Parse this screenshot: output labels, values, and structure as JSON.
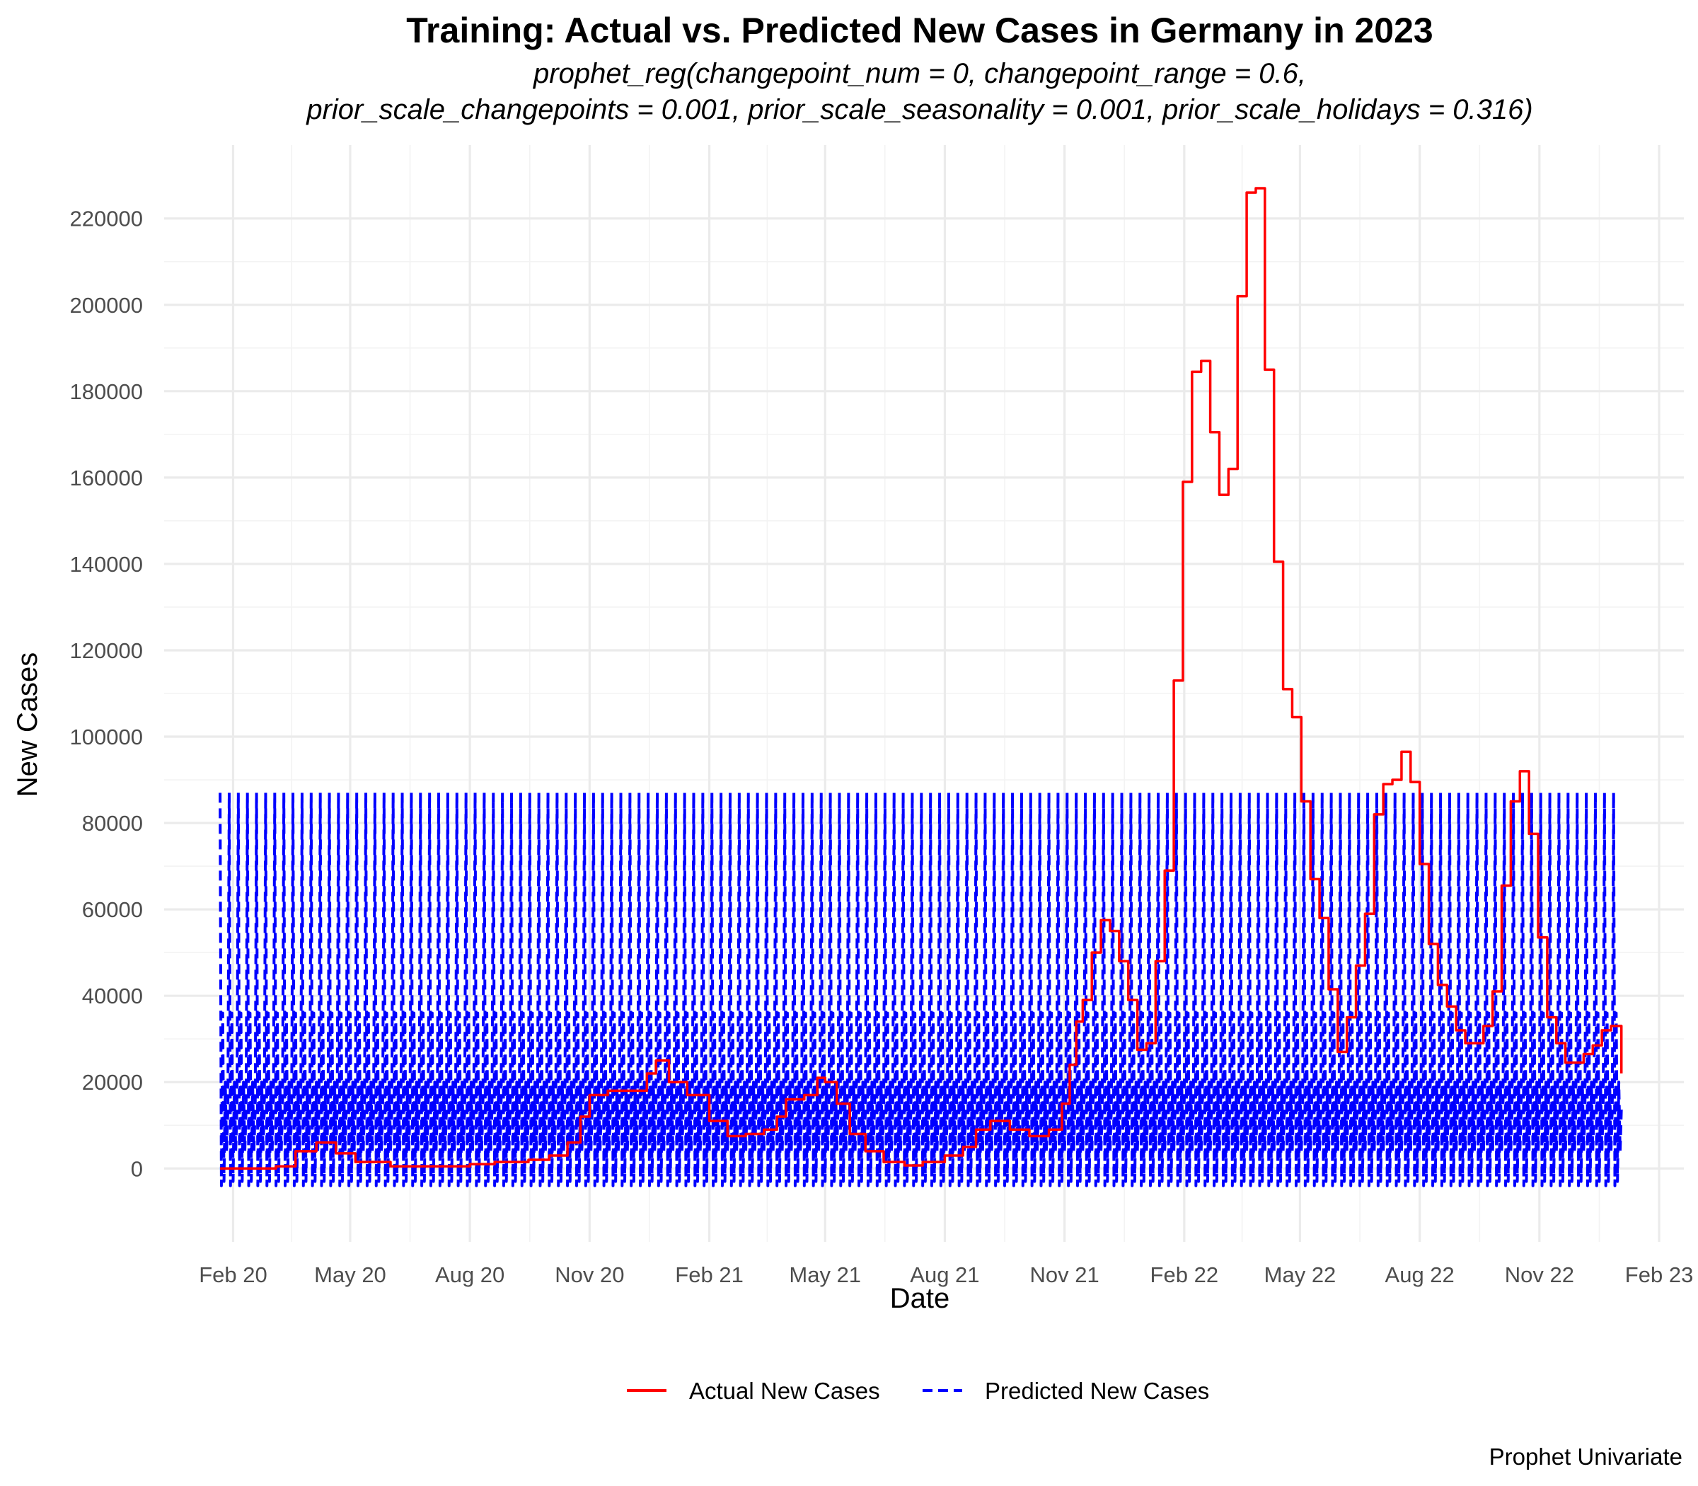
{
  "chart_data": {
    "type": "line",
    "title": "Training: Actual vs. Predicted New Cases in Germany in 2023",
    "subtitle_line1": "prophet_reg(changepoint_num = 0, changepoint_range = 0.6,",
    "subtitle_line2": "prior_scale_changepoints = 0.001, prior_scale_seasonality = 0.001, prior_scale_holidays = 0.316)",
    "xlabel": "Date",
    "ylabel": "New Cases",
    "caption": "Prophet Univariate",
    "xlim": [
      "2019-12-10",
      "2023-02-20"
    ],
    "ylim": [
      -17000,
      237000
    ],
    "x_ticks": [
      {
        "date": "2020-02-01",
        "label": "Feb 20"
      },
      {
        "date": "2020-05-01",
        "label": "May 20"
      },
      {
        "date": "2020-08-01",
        "label": "Aug 20"
      },
      {
        "date": "2020-11-01",
        "label": "Nov 20"
      },
      {
        "date": "2021-02-01",
        "label": "Feb 21"
      },
      {
        "date": "2021-05-01",
        "label": "May 21"
      },
      {
        "date": "2021-08-01",
        "label": "Aug 21"
      },
      {
        "date": "2021-11-01",
        "label": "Nov 21"
      },
      {
        "date": "2022-02-01",
        "label": "Feb 22"
      },
      {
        "date": "2022-05-01",
        "label": "May 22"
      },
      {
        "date": "2022-08-01",
        "label": "Aug 22"
      },
      {
        "date": "2022-11-01",
        "label": "Nov 22"
      },
      {
        "date": "2023-02-01",
        "label": "Feb 23"
      }
    ],
    "y_ticks": [
      0,
      20000,
      40000,
      60000,
      80000,
      100000,
      120000,
      140000,
      160000,
      180000,
      200000,
      220000
    ],
    "grid": true,
    "legend_position": "bottom",
    "series": [
      {
        "name": "Actual New Cases",
        "color": "#ff0000",
        "style": "solid",
        "points": [
          [
            "2020-01-22",
            0
          ],
          [
            "2020-02-15",
            0
          ],
          [
            "2020-03-05",
            500
          ],
          [
            "2020-03-20",
            4000
          ],
          [
            "2020-04-05",
            6000
          ],
          [
            "2020-04-20",
            3500
          ],
          [
            "2020-05-05",
            1500
          ],
          [
            "2020-06-01",
            500
          ],
          [
            "2020-07-01",
            500
          ],
          [
            "2020-08-01",
            1000
          ],
          [
            "2020-08-20",
            1500
          ],
          [
            "2020-09-15",
            2000
          ],
          [
            "2020-10-01",
            3000
          ],
          [
            "2020-10-15",
            6000
          ],
          [
            "2020-10-25",
            12000
          ],
          [
            "2020-11-01",
            17000
          ],
          [
            "2020-11-15",
            18000
          ],
          [
            "2020-12-01",
            18000
          ],
          [
            "2020-12-15",
            22000
          ],
          [
            "2020-12-22",
            25000
          ],
          [
            "2021-01-01",
            20000
          ],
          [
            "2021-01-15",
            17000
          ],
          [
            "2021-02-01",
            11000
          ],
          [
            "2021-02-15",
            7500
          ],
          [
            "2021-03-01",
            8000
          ],
          [
            "2021-03-15",
            9000
          ],
          [
            "2021-03-25",
            12000
          ],
          [
            "2021-04-01",
            16000
          ],
          [
            "2021-04-15",
            17000
          ],
          [
            "2021-04-25",
            21000
          ],
          [
            "2021-05-01",
            20000
          ],
          [
            "2021-05-10",
            15000
          ],
          [
            "2021-05-20",
            8000
          ],
          [
            "2021-06-01",
            4000
          ],
          [
            "2021-06-15",
            1500
          ],
          [
            "2021-07-01",
            700
          ],
          [
            "2021-07-15",
            1500
          ],
          [
            "2021-08-01",
            3000
          ],
          [
            "2021-08-15",
            5000
          ],
          [
            "2021-08-25",
            9000
          ],
          [
            "2021-09-05",
            11000
          ],
          [
            "2021-09-20",
            9000
          ],
          [
            "2021-10-05",
            7500
          ],
          [
            "2021-10-20",
            9000
          ],
          [
            "2021-10-30",
            15000
          ],
          [
            "2021-11-05",
            24000
          ],
          [
            "2021-11-10",
            34000
          ],
          [
            "2021-11-15",
            39000
          ],
          [
            "2021-11-22",
            50000
          ],
          [
            "2021-11-29",
            57500
          ],
          [
            "2021-12-06",
            55000
          ],
          [
            "2021-12-13",
            48000
          ],
          [
            "2021-12-20",
            39000
          ],
          [
            "2021-12-27",
            27500
          ],
          [
            "2022-01-03",
            29000
          ],
          [
            "2022-01-10",
            48000
          ],
          [
            "2022-01-17",
            69000
          ],
          [
            "2022-01-24",
            113000
          ],
          [
            "2022-01-31",
            159000
          ],
          [
            "2022-02-07",
            184500
          ],
          [
            "2022-02-14",
            187000
          ],
          [
            "2022-02-21",
            170500
          ],
          [
            "2022-02-28",
            156000
          ],
          [
            "2022-03-07",
            162000
          ],
          [
            "2022-03-14",
            202000
          ],
          [
            "2022-03-21",
            226000
          ],
          [
            "2022-03-28",
            227000
          ],
          [
            "2022-04-04",
            185000
          ],
          [
            "2022-04-11",
            140500
          ],
          [
            "2022-04-18",
            111000
          ],
          [
            "2022-04-25",
            104500
          ],
          [
            "2022-05-02",
            85000
          ],
          [
            "2022-05-09",
            67000
          ],
          [
            "2022-05-16",
            58000
          ],
          [
            "2022-05-23",
            41500
          ],
          [
            "2022-05-30",
            27000
          ],
          [
            "2022-06-06",
            35000
          ],
          [
            "2022-06-13",
            47000
          ],
          [
            "2022-06-20",
            59000
          ],
          [
            "2022-06-27",
            82000
          ],
          [
            "2022-07-04",
            89000
          ],
          [
            "2022-07-11",
            90000
          ],
          [
            "2022-07-18",
            96500
          ],
          [
            "2022-07-25",
            89500
          ],
          [
            "2022-08-01",
            70500
          ],
          [
            "2022-08-08",
            52000
          ],
          [
            "2022-08-15",
            42500
          ],
          [
            "2022-08-22",
            37500
          ],
          [
            "2022-08-29",
            32000
          ],
          [
            "2022-09-05",
            29000
          ],
          [
            "2022-09-12",
            29000
          ],
          [
            "2022-09-19",
            33000
          ],
          [
            "2022-09-26",
            41000
          ],
          [
            "2022-10-03",
            65500
          ],
          [
            "2022-10-10",
            85000
          ],
          [
            "2022-10-17",
            92000
          ],
          [
            "2022-10-24",
            77500
          ],
          [
            "2022-10-31",
            53500
          ],
          [
            "2022-11-07",
            35000
          ],
          [
            "2022-11-14",
            29000
          ],
          [
            "2022-11-21",
            24500
          ],
          [
            "2022-11-28",
            24500
          ],
          [
            "2022-12-05",
            26500
          ],
          [
            "2022-12-12",
            28500
          ],
          [
            "2022-12-19",
            32000
          ],
          [
            "2022-12-26",
            33000
          ],
          [
            "2023-01-03",
            22000
          ]
        ]
      },
      {
        "name": "Predicted New Cases",
        "color": "#0000ff",
        "style": "dashed",
        "start": "2020-01-22",
        "end": "2023-01-03",
        "weekly_pattern": [
          87000,
          -4000,
          36000,
          -3000,
          20000,
          4000,
          14000
        ]
      }
    ]
  }
}
